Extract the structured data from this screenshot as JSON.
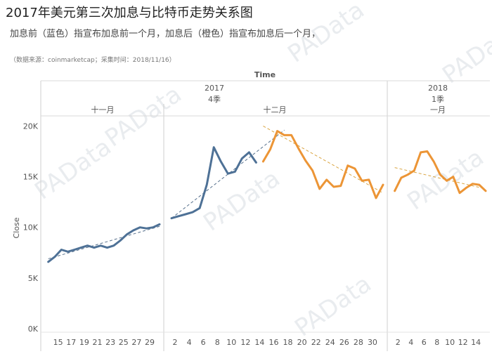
{
  "header": {
    "title": "2017年美元第三次加息与比特币走势关系图",
    "subtitle": "加息前（蓝色）指宣布加息前一个月，加息后（橙色）指宣布加息后一个月，",
    "source": "（数据来源：coinmarketcap；采集时间：2018/11/16）"
  },
  "watermark": "PAData",
  "chart_data": {
    "type": "line",
    "title": "2017年美元第三次加息与比特币走势关系图",
    "xlabel": "Time",
    "ylabel": "Close",
    "ylim": [
      0,
      21000
    ],
    "y_ticks": [
      {
        "value": 0,
        "label": "0K"
      },
      {
        "value": 5000,
        "label": "5K"
      },
      {
        "value": 10000,
        "label": "10K"
      },
      {
        "value": 15000,
        "label": "15K"
      },
      {
        "value": 20000,
        "label": "20K"
      }
    ],
    "grid": false,
    "colors": {
      "before": "#4e7196",
      "after": "#ec9536",
      "trend_before": "#56708c",
      "trend_after": "#d9a441"
    },
    "years": [
      {
        "label": "2017",
        "quarter": "4季"
      },
      {
        "label": "2018",
        "quarter": "1季"
      }
    ],
    "panels": [
      {
        "month": "十一月",
        "day_range": [
          13,
          30.5
        ],
        "x_ticks": [
          15,
          17,
          19,
          21,
          23,
          25,
          27,
          29
        ],
        "series": [
          {
            "name": "加息前",
            "color": "#4e7196",
            "x": [
              13.5,
              14.5,
              15.5,
              16.5,
              17.5,
              18.5,
              19.5,
              20.5,
              21.5,
              22.5,
              23.5,
              24.5,
              25.5,
              26.5,
              27.5,
              28.5,
              29.5,
              30.5
            ],
            "y": [
              6600,
              7100,
              7800,
              7600,
              7800,
              8000,
              8200,
              8000,
              8200,
              8000,
              8200,
              8700,
              9300,
              9700,
              10000,
              9900,
              10000,
              10300
            ]
          }
        ],
        "trend": [
          {
            "name": "加息前趋势",
            "color": "#56708c",
            "x": [
              13.5,
              30.5
            ],
            "y": [
              6900,
              10100
            ]
          }
        ]
      },
      {
        "month": "十二月",
        "day_range": [
          1,
          31.5
        ],
        "x_ticks": [
          2,
          4,
          6,
          8,
          10,
          12,
          14,
          16,
          18,
          20,
          22,
          24,
          26,
          28,
          30
        ],
        "series": [
          {
            "name": "加息前",
            "color": "#4e7196",
            "x": [
              1.5,
              2.5,
              3.5,
              4.5,
              5.5,
              6.5,
              7.5,
              8.5,
              9.5,
              10.5,
              11.5,
              12.5,
              13.5
            ],
            "y": [
              10900,
              11100,
              11300,
              11500,
              11900,
              14200,
              17900,
              16500,
              15300,
              15500,
              16800,
              17400,
              16400
            ]
          },
          {
            "name": "加息后",
            "color": "#ec9536",
            "x": [
              14.5,
              15.5,
              16.5,
              17.5,
              18.5,
              19.5,
              20.5,
              21.5,
              22.5,
              23.5,
              24.5,
              25.5,
              26.5,
              27.5,
              28.5,
              29.5,
              30.5,
              31.5
            ],
            "y": [
              16500,
              17700,
              19500,
              19100,
              19100,
              17800,
              16600,
              15600,
              13800,
              14700,
              14000,
              14100,
              16100,
              15800,
              14600,
              14700,
              12900,
              14200
            ]
          }
        ],
        "trend": [
          {
            "name": "加息前趋势",
            "color": "#56708c",
            "x": [
              1.5,
              17.5
            ],
            "y": [
              10900,
              19600
            ]
          },
          {
            "name": "加息后趋势",
            "color": "#d9a441",
            "x": [
              14.5,
              31.5
            ],
            "y": [
              20000,
              13400
            ]
          }
        ]
      },
      {
        "month": "一月",
        "day_range": [
          1,
          15.5
        ],
        "x_ticks": [
          2,
          4,
          6,
          8,
          10,
          12,
          14
        ],
        "series": [
          {
            "name": "加息后",
            "color": "#ec9536",
            "x": [
              1.5,
              2.5,
              3.5,
              4.5,
              5.5,
              6.5,
              7.5,
              8.5,
              9.5,
              10.5,
              11.5,
              12.5,
              13.5,
              14.5,
              15.5
            ],
            "y": [
              13600,
              14900,
              15200,
              15600,
              17400,
              17500,
              16500,
              15200,
              14600,
              15000,
              13400,
              13900,
              14300,
              14200,
              13600
            ]
          }
        ],
        "trend": [
          {
            "name": "加息后趋势",
            "color": "#d9a441",
            "x": [
              1.5,
              15.5
            ],
            "y": [
              15900,
              13800
            ]
          }
        ]
      }
    ]
  }
}
